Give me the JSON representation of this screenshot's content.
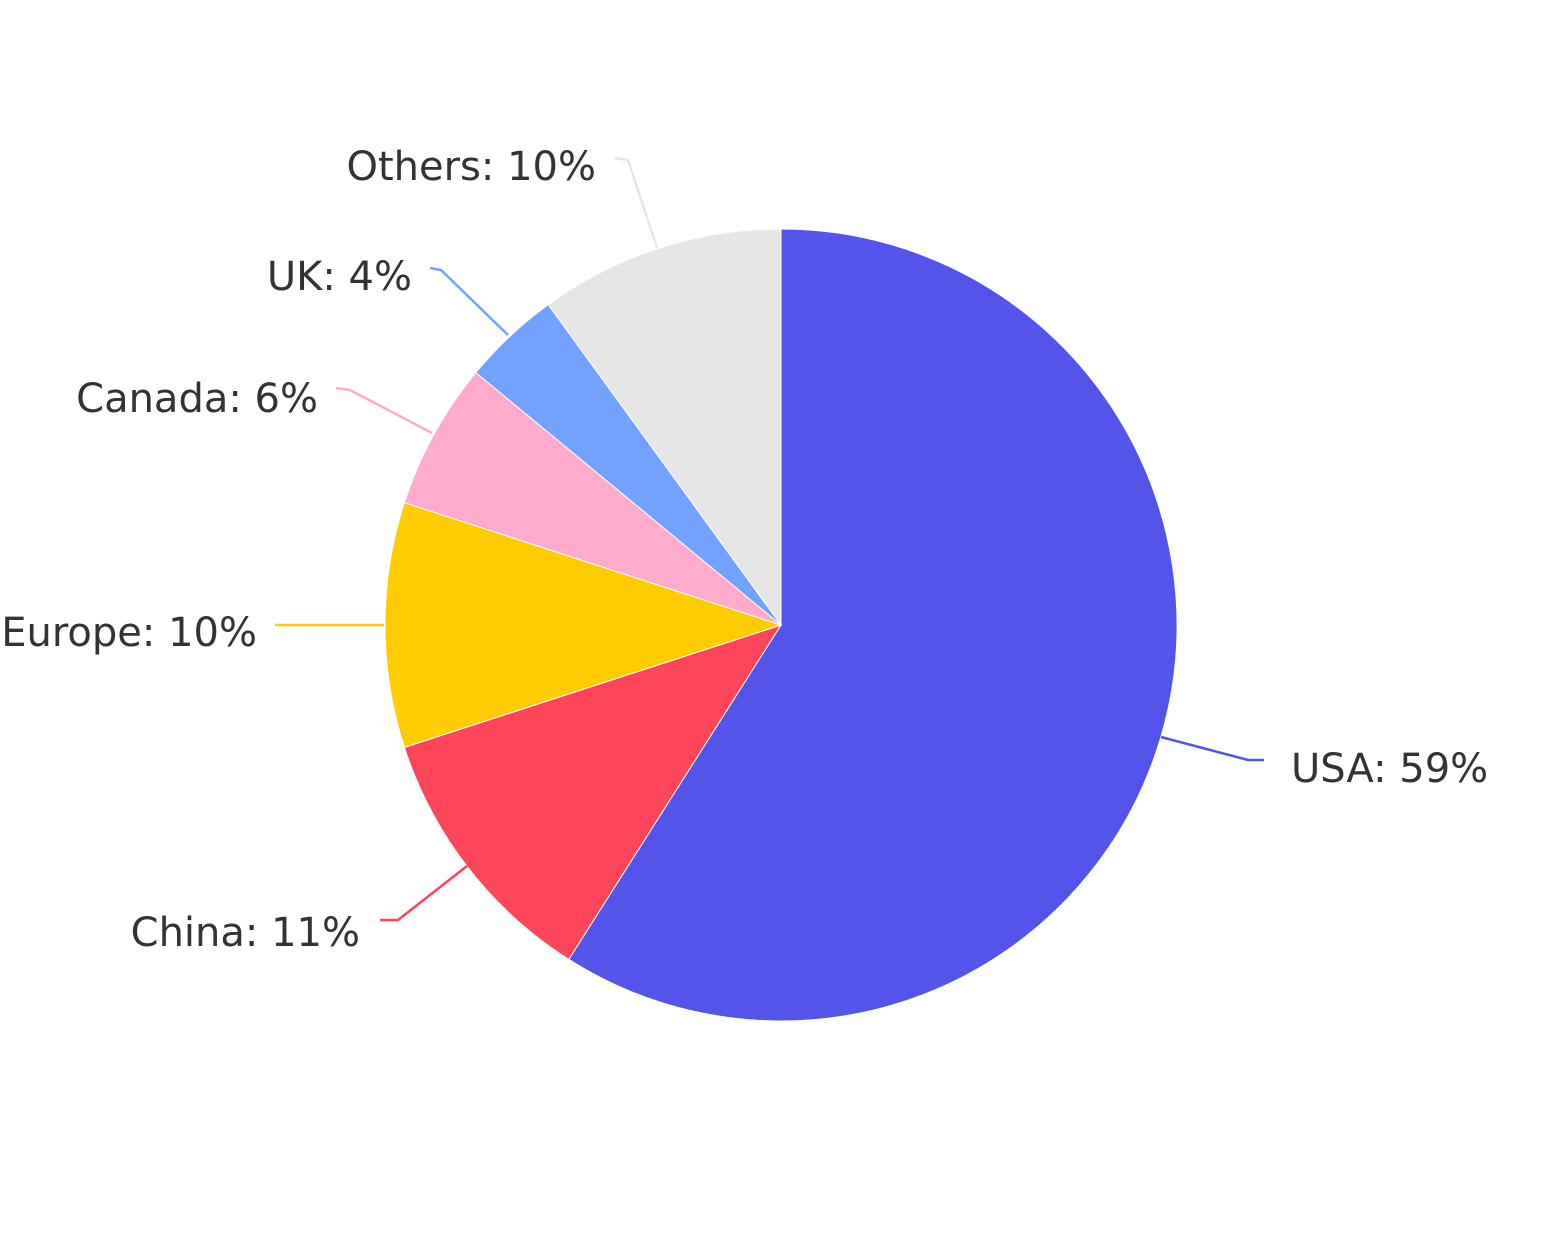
{
  "chart_data": {
    "type": "pie",
    "slices": [
      {
        "label": "USA",
        "value": 59,
        "display": "USA: 59%",
        "color": "#5454EA"
      },
      {
        "label": "China",
        "value": 11,
        "display": "China: 11%",
        "color": "#FF455A"
      },
      {
        "label": "Europe",
        "value": 10,
        "display": "Europe: 10%",
        "color": "#FFCC00"
      },
      {
        "label": "Canada",
        "value": 6,
        "display": "Canada: 6%",
        "color": "#FFABCE"
      },
      {
        "label": "UK",
        "value": 4,
        "display": "UK: 4%",
        "color": "#73A1FF"
      },
      {
        "label": "Others",
        "value": 10,
        "display": "Others: 10%",
        "color": "#E6E6E6"
      }
    ],
    "start": "top",
    "direction": "clockwise",
    "legend": "none"
  }
}
